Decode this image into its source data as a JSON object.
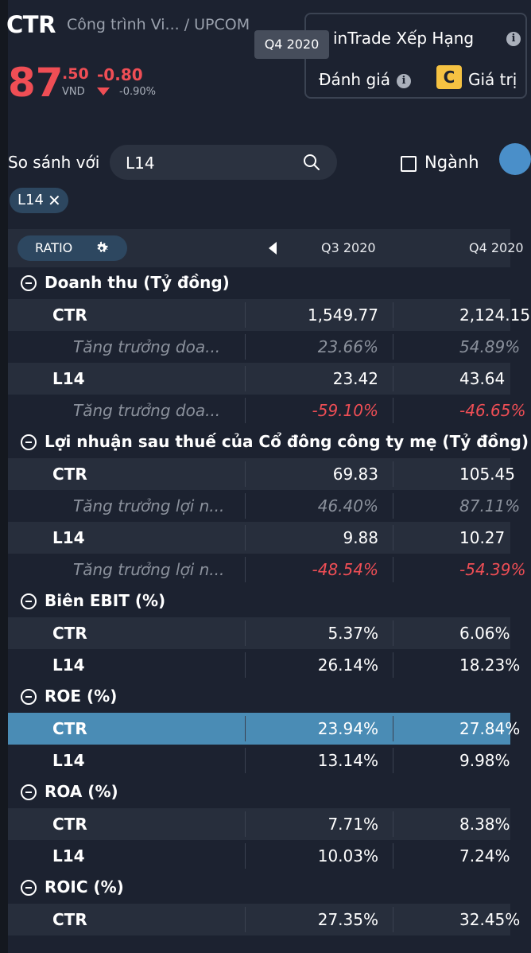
{
  "header": {
    "ticker": "CTR",
    "company": "Công trình Vi... / UPCOM",
    "price_int": "87",
    "price_dec": ".50",
    "currency": "VND",
    "change": "-0.80",
    "change_pct": "-0.90%"
  },
  "rating": {
    "title": "inTrade Xếp Hạng",
    "label": "Đánh giá",
    "grade": "C",
    "price_label": "Giá trị"
  },
  "tooltip": "Q4 2020",
  "compare": {
    "label": "So sánh với",
    "search_value": "L14",
    "industry_label": "Ngành",
    "chip": "L14"
  },
  "table": {
    "ratio_label": "RATIO",
    "columns": [
      "Q3 2020",
      "Q4 2020"
    ],
    "rows": [
      {
        "type": "section",
        "title": "Doanh thu (Tỷ đồng)"
      },
      {
        "type": "data",
        "label": "CTR",
        "v1": "1,549.77",
        "v2": "2,124.15"
      },
      {
        "type": "growth",
        "label": "Tăng trưởng doa...",
        "v1": "23.66%",
        "v2": "54.89%",
        "tone": "grey"
      },
      {
        "type": "data",
        "label": "L14",
        "v1": "23.42",
        "v2": "43.64"
      },
      {
        "type": "growth",
        "label": "Tăng trưởng doa...",
        "v1": "-59.10%",
        "v2": "-46.65%",
        "tone": "red"
      },
      {
        "type": "section",
        "title": "Lợi nhuận sau thuế của Cổ đông công ty mẹ (Tỷ đồng)"
      },
      {
        "type": "data",
        "label": "CTR",
        "v1": "69.83",
        "v2": "105.45"
      },
      {
        "type": "growth",
        "label": "Tăng trưởng lợi n...",
        "v1": "46.40%",
        "v2": "87.11%",
        "tone": "grey"
      },
      {
        "type": "data",
        "label": "L14",
        "v1": "9.88",
        "v2": "10.27"
      },
      {
        "type": "growth",
        "label": "Tăng trưởng lợi n...",
        "v1": "-48.54%",
        "v2": "-54.39%",
        "tone": "red"
      },
      {
        "type": "section",
        "title": "Biên EBIT (%)"
      },
      {
        "type": "data",
        "label": "CTR",
        "v1": "5.37%",
        "v2": "6.06%"
      },
      {
        "type": "data",
        "label": "L14",
        "v1": "26.14%",
        "v2": "18.23%"
      },
      {
        "type": "section",
        "title": "ROE (%)"
      },
      {
        "type": "data",
        "label": "CTR",
        "v1": "23.94%",
        "v2": "27.84%",
        "highlight": true
      },
      {
        "type": "data",
        "label": "L14",
        "v1": "13.14%",
        "v2": "9.98%"
      },
      {
        "type": "section",
        "title": "ROA (%)"
      },
      {
        "type": "data",
        "label": "CTR",
        "v1": "7.71%",
        "v2": "8.38%"
      },
      {
        "type": "data",
        "label": "L14",
        "v1": "10.03%",
        "v2": "7.24%"
      },
      {
        "type": "section",
        "title": "ROIC (%)"
      },
      {
        "type": "data",
        "label": "CTR",
        "v1": "27.35%",
        "v2": "32.45%"
      }
    ]
  },
  "colors": {
    "background": "#1c2230",
    "accent_blue": "#4a8cb5",
    "negative_red": "#ef4e55",
    "grade_yellow": "#f5c242"
  }
}
